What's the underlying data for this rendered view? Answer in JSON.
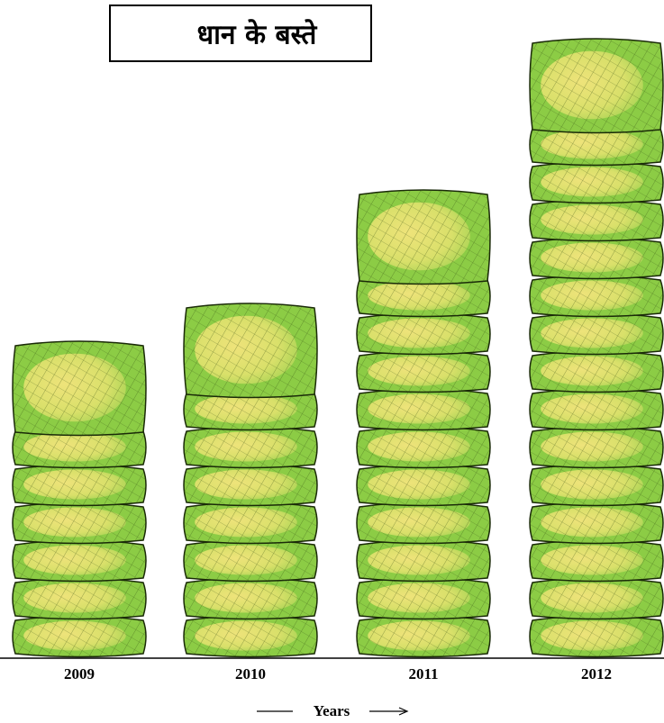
{
  "chart_data": {
    "type": "pictograph",
    "title": "धान के बस्ते",
    "categories": [
      "2009",
      "2010",
      "2011",
      "2012"
    ],
    "values": [
      7,
      8,
      11,
      15
    ],
    "xlabel": "Years",
    "color": "#8ccc45"
  }
}
